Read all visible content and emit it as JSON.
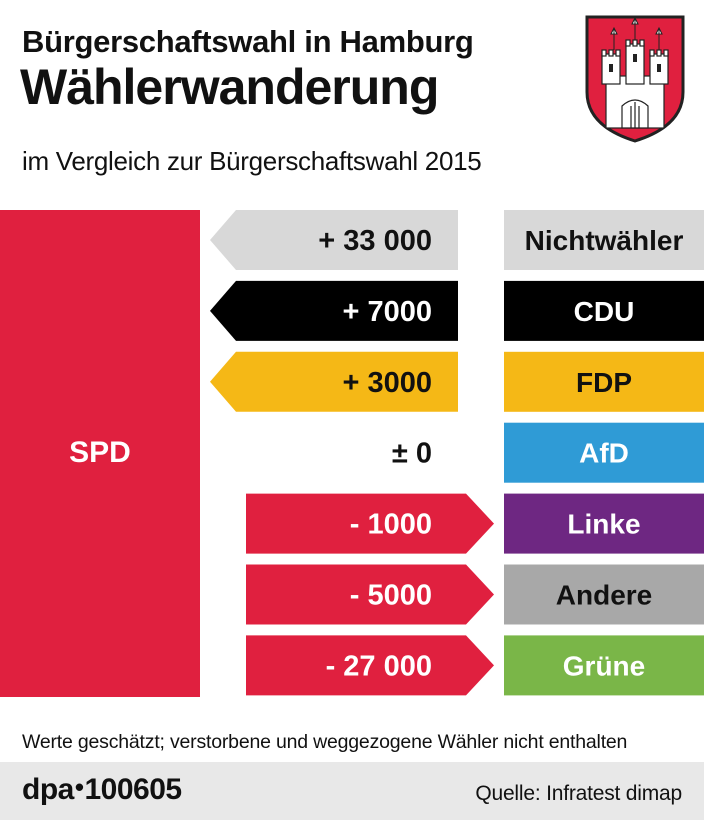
{
  "header": {
    "supertitle": "Bürgerschaftswahl in Hamburg",
    "title": "Wählerwanderung",
    "subtitle": "im Vergleich zur Bürgerschaftswahl 2015"
  },
  "chart_data": {
    "type": "bar",
    "title": "Wählerwanderung",
    "subject_party": "SPD",
    "subject_color": "#e0203f",
    "categories": [
      "Nichtwähler",
      "CDU",
      "FDP",
      "AfD",
      "Linke",
      "Andere",
      "Grüne"
    ],
    "values": [
      33000,
      7000,
      3000,
      0,
      -1000,
      -5000,
      -27000
    ],
    "value_labels": [
      "+ 33 000",
      "+ 7000",
      "+ 3000",
      "± 0",
      "- 1000",
      "- 5000",
      "- 27 000"
    ],
    "party_colors": [
      "#d8d8d8",
      "#000000",
      "#f5b816",
      "#2f9bd6",
      "#6e2782",
      "#a8a8a8",
      "#7ab648"
    ],
    "party_text_colors": [
      "#111111",
      "#ffffff",
      "#111111",
      "#ffffff",
      "#ffffff",
      "#111111",
      "#ffffff"
    ],
    "gain_arrow_colors": [
      "#d8d8d8",
      "#000000",
      "#f5b816"
    ],
    "loss_arrow_color": "#e0203f",
    "arrow_text_colors": [
      "#111111",
      "#ffffff",
      "#111111",
      "#111111",
      "#ffffff",
      "#ffffff",
      "#ffffff"
    ]
  },
  "notes": {
    "footnote": "Werte geschätzt; verstorbene und weggezogene Wähler nicht enthalten"
  },
  "footer": {
    "agency": "dpa",
    "graphic_id": "100605",
    "source": "Quelle: Infratest dimap"
  },
  "crest": {
    "icon": "hamburg-coat-of-arms-icon",
    "colors": {
      "red": "#e0203f",
      "white": "#ffffff",
      "outline": "#222222"
    }
  }
}
